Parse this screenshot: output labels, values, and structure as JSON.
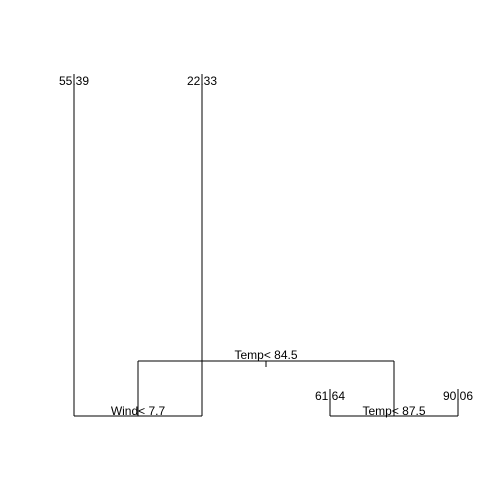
{
  "chart_data": {
    "type": "regression-tree",
    "root": {
      "split": "Temp< 84.5",
      "left": {
        "split": "Wind< 7.7",
        "left": {
          "leaf": "55.39"
        },
        "right": {
          "leaf": "22.33"
        }
      },
      "right": {
        "split": "Temp< 87.5",
        "left": {
          "leaf": "61.64"
        },
        "right": {
          "leaf": "90.06"
        }
      }
    },
    "splits": [
      "Temp< 84.5",
      "Wind< 7.7",
      "Temp< 87.5"
    ],
    "leaves": [
      "55.39",
      "22.33",
      "61.64",
      "90.06"
    ],
    "title": "",
    "xlabel": "",
    "ylabel": ""
  }
}
